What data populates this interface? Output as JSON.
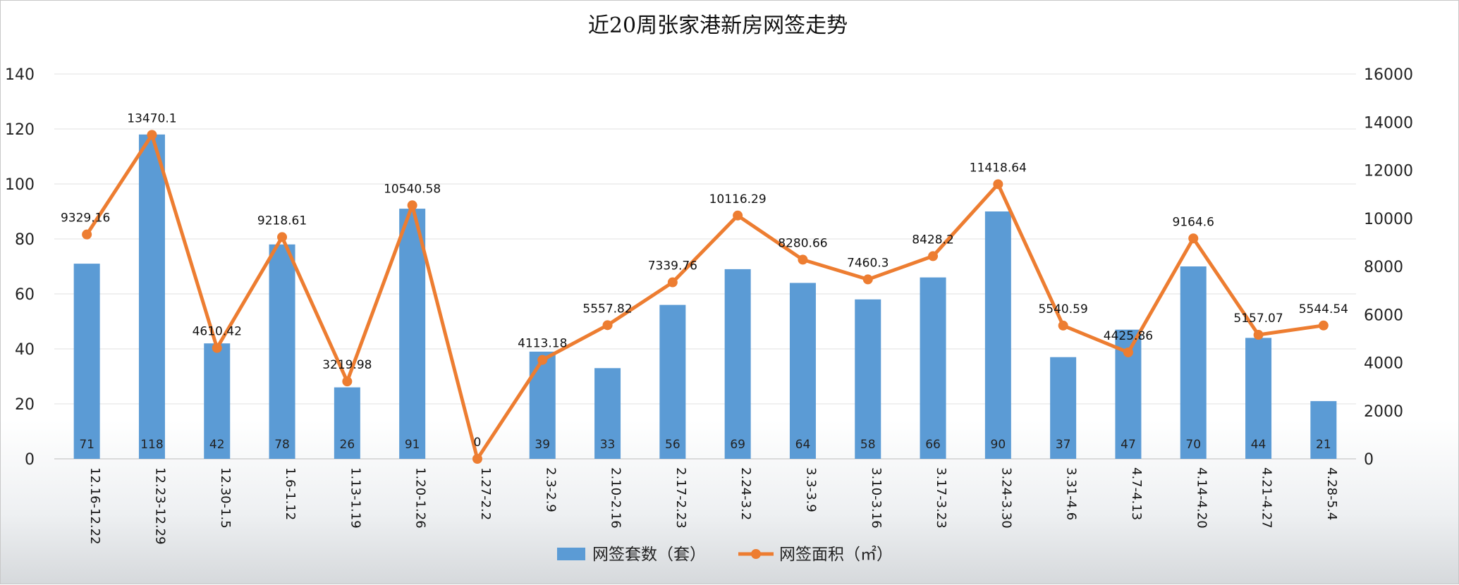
{
  "chart_data": {
    "type": "bar",
    "title": "近20周张家港新房网签走势",
    "categories": [
      "12.16-12.22",
      "12.23-12.29",
      "12.30-1.5",
      "1.6-1.12",
      "1.13-1.19",
      "1.20-1.26",
      "1.27-2.2",
      "2.3-2.9",
      "2.10-2.16",
      "2.17-2.23",
      "2.24-3.2",
      "3.3-3.9",
      "3.10-3.16",
      "3.17-3.23",
      "3.24-3.30",
      "3.31-4.6",
      "4.7-4.13",
      "4.14-4.20",
      "4.21-4.27",
      "4.28-5.4"
    ],
    "series": [
      {
        "name": "网签套数（套）",
        "type": "bar",
        "axis": "left",
        "color": "#5b9bd5",
        "values": [
          71,
          118,
          42,
          78,
          26,
          91,
          0,
          39,
          33,
          56,
          69,
          64,
          58,
          66,
          90,
          37,
          47,
          70,
          44,
          21
        ]
      },
      {
        "name": "网签面积（㎡）",
        "type": "line",
        "axis": "right",
        "color": "#ed7d31",
        "values": [
          9329.16,
          13470.1,
          4610.42,
          9218.61,
          3219.98,
          10540.58,
          0,
          4113.18,
          5557.82,
          7339.76,
          10116.29,
          8280.66,
          7460.3,
          8428.2,
          11418.64,
          5540.59,
          4425.86,
          9164.6,
          5157.07,
          5544.54
        ],
        "labels": [
          "9329.16",
          "13470.1",
          "4610.42",
          "9218.61",
          "3219.98",
          "10540.58",
          "0",
          "4113.18",
          "5557.82",
          "7339.76",
          "10116.29",
          "8280.66",
          "7460.3",
          "8428.2",
          "11418.64",
          "5540.59",
          "4425.86",
          "9164.6",
          "5157.07",
          "5544.54"
        ]
      }
    ],
    "bar_labels": [
      "71",
      "118",
      "42",
      "78",
      "26",
      "91",
      "0",
      "39",
      "33",
      "56",
      "69",
      "64",
      "58",
      "66",
      "90",
      "37",
      "47",
      "70",
      "44",
      "21"
    ],
    "ylim_left": [
      0,
      140
    ],
    "yticks_left": [
      "0",
      "20",
      "40",
      "60",
      "80",
      "100",
      "120",
      "140"
    ],
    "ylim_right": [
      0,
      16000
    ],
    "yticks_right": [
      "0",
      "2000",
      "4000",
      "6000",
      "8000",
      "10000",
      "12000",
      "14000",
      "16000"
    ],
    "grid": true,
    "legend_position": "bottom-center"
  }
}
